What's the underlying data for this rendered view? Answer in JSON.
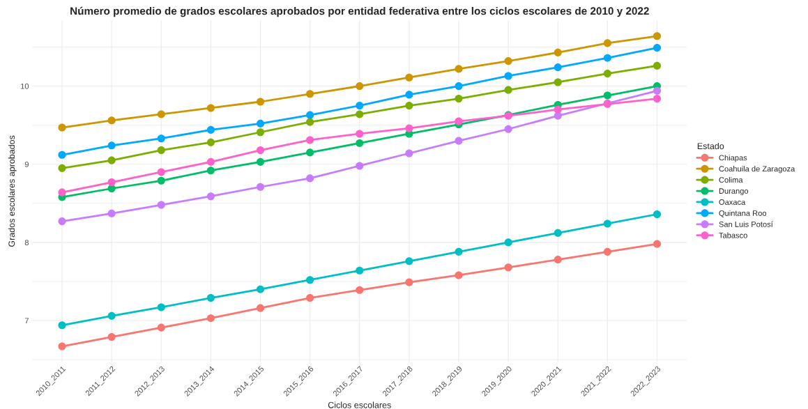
{
  "chart_data": {
    "type": "line",
    "title": "Número promedio de grados escolares aprobados por entidad federativa entre los ciclos escolares de 2010 y 2022",
    "xlabel": "Ciclos escolares",
    "ylabel": "Grados escolares aprobados",
    "legend_title": "Estado",
    "categories": [
      "2010_2011",
      "2011_2012",
      "2012_2013",
      "2013_2014",
      "2014_2015",
      "2015_2016",
      "2016_2017",
      "2017_2018",
      "2018_2019",
      "2019_2020",
      "2020_2021",
      "2021_2022",
      "2022_2023"
    ],
    "series": [
      {
        "name": "Chiapas",
        "color": "#f8766d",
        "values": [
          6.67,
          6.79,
          6.91,
          7.03,
          7.16,
          7.29,
          7.39,
          7.49,
          7.58,
          7.68,
          7.78,
          7.88,
          7.98
        ]
      },
      {
        "name": "Coahuila de Zaragoza",
        "color": "#cd9600",
        "values": [
          9.47,
          9.56,
          9.64,
          9.72,
          9.8,
          9.9,
          10.0,
          10.11,
          10.22,
          10.32,
          10.43,
          10.55,
          10.64
        ]
      },
      {
        "name": "Colima",
        "color": "#7cae00",
        "values": [
          8.95,
          9.05,
          9.18,
          9.28,
          9.41,
          9.54,
          9.64,
          9.75,
          9.84,
          9.95,
          10.05,
          10.16,
          10.26
        ]
      },
      {
        "name": "Durango",
        "color": "#00be67",
        "values": [
          8.58,
          8.69,
          8.79,
          8.92,
          9.03,
          9.15,
          9.27,
          9.39,
          9.51,
          9.63,
          9.76,
          9.88,
          10.0
        ]
      },
      {
        "name": "Oaxaca",
        "color": "#00bfc4",
        "values": [
          6.94,
          7.06,
          7.17,
          7.29,
          7.4,
          7.52,
          7.64,
          7.76,
          7.88,
          8.0,
          8.12,
          8.24,
          8.36
        ]
      },
      {
        "name": "Quintana Roo",
        "color": "#00a9ff",
        "values": [
          9.12,
          9.24,
          9.33,
          9.44,
          9.52,
          9.63,
          9.75,
          9.89,
          10.0,
          10.13,
          10.24,
          10.36,
          10.49
        ]
      },
      {
        "name": "San Luis Potosí",
        "color": "#c77cff",
        "values": [
          8.27,
          8.37,
          8.48,
          8.59,
          8.71,
          8.82,
          8.98,
          9.14,
          9.3,
          9.45,
          9.62,
          9.78,
          9.94
        ]
      },
      {
        "name": "Tabasco",
        "color": "#ff61cc",
        "values": [
          8.64,
          8.77,
          8.9,
          9.03,
          9.18,
          9.31,
          9.39,
          9.46,
          9.55,
          9.62,
          9.7,
          9.77,
          9.84
        ]
      }
    ],
    "ylim": [
      6.47,
      10.84
    ],
    "yticks": [
      {
        "value": 6.5,
        "label": null
      },
      7,
      {
        "value": 7.5,
        "label": null
      },
      8,
      {
        "value": 8.5,
        "label": null
      },
      9,
      {
        "value": 9.5,
        "label": null
      },
      10,
      {
        "value": 10.5,
        "label": null
      }
    ],
    "grid": true,
    "legend": "right",
    "marker": "circle",
    "line_style": "solid"
  }
}
